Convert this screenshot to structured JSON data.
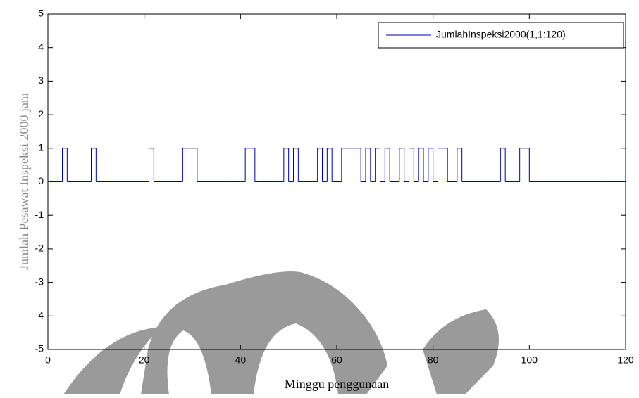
{
  "chart_data": {
    "type": "stairs",
    "xlabel": "Minggu penggunaan",
    "ylabel": "Jumlah Pesawat Inspeksi 2000 jam",
    "x": [
      0,
      1,
      2,
      3,
      4,
      5,
      6,
      7,
      8,
      9,
      10,
      11,
      12,
      13,
      14,
      15,
      16,
      17,
      18,
      19,
      20,
      21,
      22,
      23,
      24,
      25,
      26,
      27,
      28,
      29,
      30,
      31,
      32,
      33,
      34,
      35,
      36,
      37,
      38,
      39,
      40,
      41,
      42,
      43,
      44,
      45,
      46,
      47,
      48,
      49,
      50,
      51,
      52,
      53,
      54,
      55,
      56,
      57,
      58,
      59,
      60,
      61,
      62,
      63,
      64,
      65,
      66,
      67,
      68,
      69,
      70,
      71,
      72,
      73,
      74,
      75,
      76,
      77,
      78,
      79,
      80,
      81,
      82,
      83,
      84,
      85,
      86,
      87,
      88,
      89,
      90,
      91,
      92,
      93,
      94,
      95,
      96,
      97,
      98,
      99,
      100,
      101,
      102,
      103,
      104,
      105,
      106,
      107,
      108,
      109,
      110,
      111,
      112,
      113,
      114,
      115,
      116,
      117,
      118,
      119,
      120
    ],
    "series": [
      {
        "name": "JumlahInspeksi2000(1,1:120)",
        "color": "#0000aa",
        "values": [
          0,
          0,
          0,
          1,
          0,
          0,
          0,
          0,
          0,
          1,
          0,
          0,
          0,
          0,
          0,
          0,
          0,
          0,
          0,
          0,
          0,
          1,
          0,
          0,
          0,
          0,
          0,
          0,
          1,
          1,
          1,
          0,
          0,
          0,
          0,
          0,
          0,
          0,
          0,
          0,
          0,
          1,
          1,
          0,
          0,
          0,
          0,
          0,
          0,
          1,
          0,
          1,
          0,
          0,
          0,
          0,
          1,
          0,
          1,
          0,
          0,
          1,
          1,
          1,
          1,
          0,
          1,
          0,
          1,
          0,
          1,
          0,
          0,
          1,
          0,
          1,
          0,
          1,
          0,
          1,
          0,
          1,
          1,
          0,
          0,
          1,
          0,
          0,
          0,
          0,
          0,
          0,
          0,
          0,
          1,
          0,
          0,
          0,
          1,
          1,
          0,
          0,
          0,
          0,
          0,
          0,
          0,
          0,
          0,
          0,
          0,
          0,
          0,
          0,
          0,
          0,
          0,
          0,
          0,
          0,
          0
        ]
      }
    ],
    "xlim": [
      0,
      120
    ],
    "xticks": [
      0,
      20,
      40,
      60,
      80,
      100,
      120
    ],
    "ylim": [
      -5,
      5
    ],
    "yticks": [
      -5,
      -4,
      -3,
      -2,
      -1,
      0,
      1,
      2,
      3,
      4,
      5
    ],
    "legend": "top-right"
  }
}
